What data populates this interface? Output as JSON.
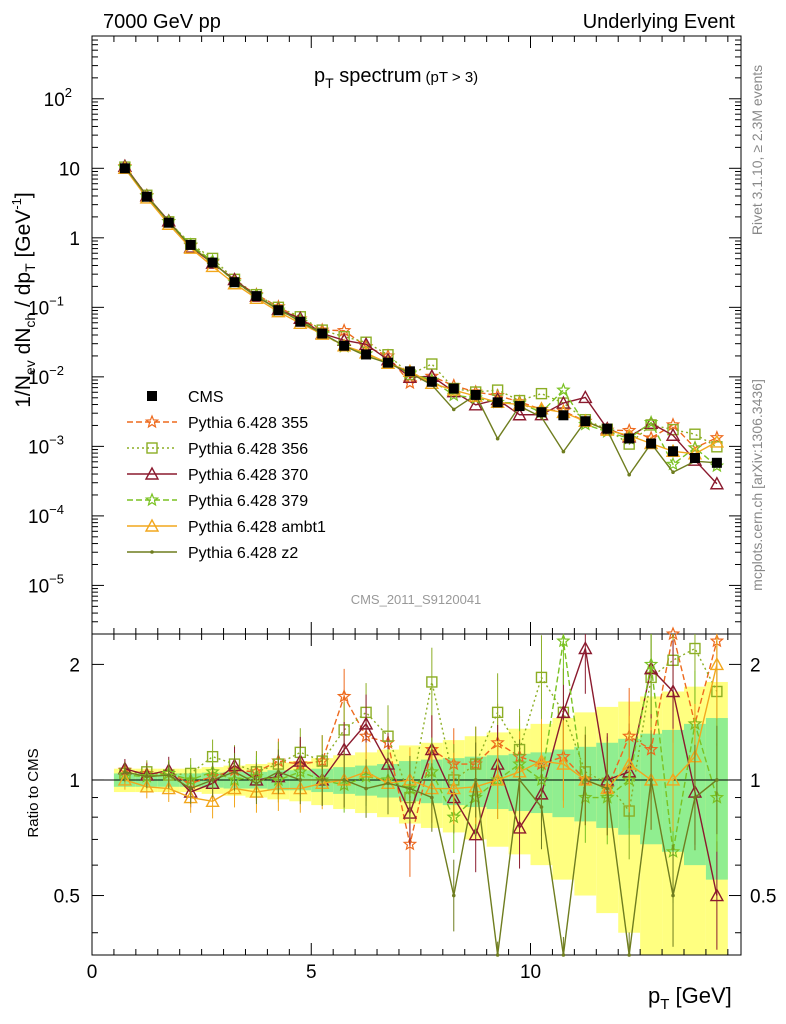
{
  "header": {
    "left": "7000 GeV pp",
    "right": "Underlying Event"
  },
  "plot_title": "p",
  "plot_title_sub": "T",
  "plot_title_rest": " spectrum",
  "plot_title_cut": "(pT >  3)",
  "side_text_top": "Rivet 3.1.10, ≥ 2.3M events",
  "side_text_bottom": "mcplots.cern.ch [arXiv:1306.3436]",
  "watermark": "CMS_2011_S9120041",
  "ratio_ylabel": "Ratio to CMS",
  "xlabel": "p",
  "xlabel_sub": "T",
  "xlabel_unit": " [GeV]",
  "ylabel": "1/N_ev dN_ch / dp_T [GeV^-1]",
  "colors": {
    "data": "#000000",
    "p355": "#ee6a1d",
    "p356": "#8cae24",
    "p370": "#8b1a2e",
    "p379": "#7ac222",
    "ambt1": "#f2a71d",
    "z2": "#6f7d1f",
    "band_inner": "#90ee90",
    "band_outer": "#ffff80"
  },
  "chart_data": {
    "type": "line",
    "x_range": [
      0,
      14.8
    ],
    "y_log": true,
    "y_range": [
      2e-06,
      800
    ],
    "ratio_range": [
      0.35,
      2.4
    ],
    "x_ticks": [
      0,
      5,
      10
    ],
    "y_ticks": [
      {
        "value": 1e-05,
        "label": "10",
        "exp": "−5"
      },
      {
        "value": 0.0001,
        "label": "10",
        "exp": "−4"
      },
      {
        "value": 0.001,
        "label": "10",
        "exp": "−3"
      },
      {
        "value": 0.01,
        "label": "10",
        "exp": "−2"
      },
      {
        "value": 0.1,
        "label": "10",
        "exp": "−1"
      },
      {
        "value": 1,
        "label": "1",
        "exp": ""
      },
      {
        "value": 10,
        "label": "10",
        "exp": ""
      },
      {
        "value": 100,
        "label": "10",
        "exp": "2"
      }
    ],
    "ratio_ticks": [
      {
        "value": 0.5,
        "label": "0.5"
      },
      {
        "value": 1,
        "label": "1"
      },
      {
        "value": 2,
        "label": "2"
      }
    ],
    "x": [
      0.75,
      1.25,
      1.75,
      2.25,
      2.75,
      3.25,
      3.75,
      4.25,
      4.75,
      5.25,
      5.75,
      6.25,
      6.75,
      7.25,
      7.75,
      8.25,
      8.75,
      9.25,
      9.75,
      10.25,
      10.75,
      11.25,
      11.75,
      12.25,
      12.75,
      13.25,
      13.75,
      14.25
    ],
    "data_values": [
      10.0,
      3.9,
      1.65,
      0.79,
      0.44,
      0.23,
      0.145,
      0.091,
      0.062,
      0.042,
      0.028,
      0.021,
      0.016,
      0.012,
      0.0085,
      0.0068,
      0.0055,
      0.0043,
      0.0038,
      0.0031,
      0.0028,
      0.0023,
      0.0018,
      0.0013,
      0.0011,
      0.00085,
      0.00068,
      0.00058
    ],
    "band_inner": [
      0.04,
      0.04,
      0.04,
      0.04,
      0.045,
      0.05,
      0.05,
      0.06,
      0.06,
      0.07,
      0.08,
      0.09,
      0.1,
      0.12,
      0.13,
      0.14,
      0.15,
      0.16,
      0.17,
      0.18,
      0.2,
      0.22,
      0.25,
      0.28,
      0.32,
      0.35,
      0.4,
      0.45
    ],
    "band_outer": [
      0.07,
      0.07,
      0.07,
      0.07,
      0.08,
      0.09,
      0.1,
      0.11,
      0.12,
      0.14,
      0.16,
      0.18,
      0.2,
      0.23,
      0.25,
      0.27,
      0.3,
      0.33,
      0.36,
      0.4,
      0.45,
      0.5,
      0.55,
      0.6,
      0.65,
      0.7,
      0.75,
      0.8
    ],
    "series": [
      {
        "name": "Pythia 6.428 355",
        "color_key": "p355",
        "marker": "star",
        "dash": "6,3",
        "ratios": [
          1.06,
          1.04,
          1.04,
          0.98,
          1.02,
          1.06,
          1.05,
          1.12,
          1.1,
          1.12,
          1.65,
          1.3,
          1.25,
          0.68,
          1.2,
          1.1,
          1.1,
          1.25,
          1.15,
          1.1,
          1.15,
          1.0,
          0.95,
          1.3,
          1.2,
          2.4,
          1.4,
          2.3
        ]
      },
      {
        "name": "Pythia 6.428 356",
        "color_key": "p356",
        "marker": "square",
        "dash": "2,3",
        "ratios": [
          1.04,
          1.05,
          1.03,
          1.04,
          1.15,
          1.1,
          1.05,
          1.1,
          1.18,
          1.12,
          1.35,
          1.5,
          1.3,
          0.9,
          1.8,
          1.0,
          1.1,
          1.5,
          1.2,
          1.85,
          1.5,
          1.05,
          0.98,
          0.83,
          1.85,
          2.05,
          2.2,
          1.7
        ]
      },
      {
        "name": "Pythia 6.428 370",
        "color_key": "p370",
        "marker": "triangle",
        "dash": "",
        "ratios": [
          1.07,
          1.03,
          1.06,
          0.93,
          0.98,
          1.09,
          1.0,
          1.02,
          1.12,
          1.0,
          1.2,
          1.4,
          1.1,
          0.82,
          1.2,
          0.9,
          0.72,
          1.1,
          0.75,
          0.92,
          1.5,
          2.2,
          1.0,
          1.05,
          1.95,
          1.7,
          0.93,
          0.5
        ]
      },
      {
        "name": "Pythia 6.428 379",
        "color_key": "p379",
        "marker": "star",
        "dash": "6,3",
        "ratios": [
          1.03,
          1.02,
          1.04,
          1.0,
          1.05,
          1.0,
          1.02,
          1.0,
          1.05,
          1.0,
          0.97,
          1.02,
          1.0,
          0.95,
          1.05,
          0.8,
          0.9,
          1.0,
          1.1,
          1.0,
          2.3,
          0.9,
          0.9,
          1.0,
          2.0,
          0.65,
          1.4,
          0.9
        ]
      },
      {
        "name": "Pythia 6.428 ambt1",
        "color_key": "ambt1",
        "marker": "triangle",
        "dash": "",
        "ratios": [
          1.0,
          0.96,
          0.95,
          0.9,
          0.88,
          0.95,
          0.93,
          0.95,
          0.95,
          0.98,
          1.0,
          1.05,
          0.98,
          1.0,
          0.95,
          0.95,
          0.96,
          1.0,
          1.05,
          1.12,
          1.1,
          1.0,
          0.95,
          1.1,
          1.0,
          1.0,
          1.15,
          2.0
        ]
      },
      {
        "name": "Pythia 6.428 z2",
        "color_key": "z2",
        "marker": "dot",
        "dash": "",
        "ratios": [
          1.05,
          1.02,
          1.03,
          0.95,
          1.0,
          1.05,
          0.98,
          1.05,
          1.0,
          1.0,
          1.0,
          0.95,
          0.98,
          0.95,
          0.9,
          0.5,
          1.0,
          0.3,
          1.0,
          0.85,
          0.3,
          1.0,
          0.95,
          0.3,
          1.0,
          0.5,
          0.9,
          1.0
        ]
      }
    ],
    "legend": [
      {
        "label": "CMS",
        "key": "data"
      },
      {
        "label": "Pythia 6.428 355",
        "key": "p355"
      },
      {
        "label": "Pythia 6.428 356",
        "key": "p356"
      },
      {
        "label": "Pythia 6.428 370",
        "key": "p370"
      },
      {
        "label": "Pythia 6.428 379",
        "key": "p379"
      },
      {
        "label": "Pythia 6.428 ambt1",
        "key": "ambt1"
      },
      {
        "label": "Pythia 6.428 z2",
        "key": "z2"
      }
    ]
  }
}
